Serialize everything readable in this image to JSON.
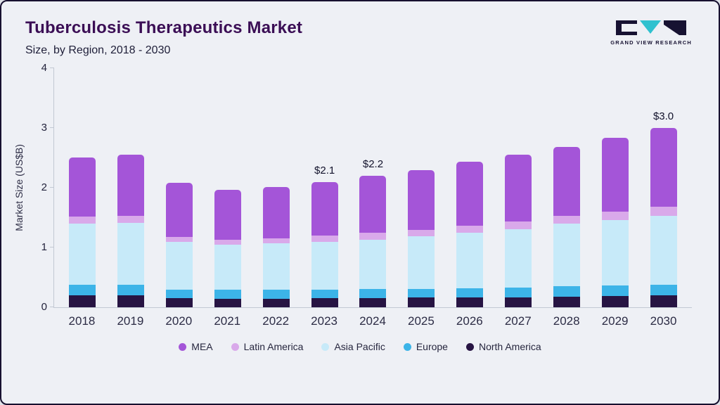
{
  "header": {
    "title": "Tuberculosis Therapeutics Market",
    "subtitle": "Size, by Region, 2018 - 2030",
    "logo_text": "GRAND VIEW RESEARCH"
  },
  "colors": {
    "title": "#3b0e55",
    "logo_dark": "#171232",
    "logo_teal": "#2fc1cf",
    "axis_line": "#c2c8d3",
    "background": "#eef0f5"
  },
  "chart_data": {
    "type": "bar",
    "stacked": true,
    "title": "Tuberculosis Therapeutics Market Size, by Region, 2018 - 2030",
    "xlabel": "",
    "ylabel": "Market Size (US$B)",
    "ylim": [
      0,
      4
    ],
    "yticks": [
      0,
      1,
      2,
      3,
      4
    ],
    "grid": false,
    "legend_position": "bottom",
    "categories": [
      "2018",
      "2019",
      "2020",
      "2021",
      "2022",
      "2023",
      "2024",
      "2025",
      "2026",
      "2027",
      "2028",
      "2029",
      "2030"
    ],
    "series": [
      {
        "name": "North America",
        "color": "#271443",
        "values": [
          0.2,
          0.2,
          0.15,
          0.14,
          0.14,
          0.15,
          0.15,
          0.16,
          0.16,
          0.17,
          0.18,
          0.19,
          0.2
        ]
      },
      {
        "name": "Europe",
        "color": "#3cb4e8",
        "values": [
          0.18,
          0.18,
          0.15,
          0.15,
          0.15,
          0.15,
          0.16,
          0.15,
          0.16,
          0.16,
          0.17,
          0.17,
          0.18
        ]
      },
      {
        "name": "Asia Pacific",
        "color": "#c7eaf9",
        "values": [
          1.02,
          1.03,
          0.8,
          0.76,
          0.78,
          0.8,
          0.82,
          0.88,
          0.93,
          0.98,
          1.05,
          1.1,
          1.15
        ]
      },
      {
        "name": "Latin America",
        "color": "#d9a9ea",
        "values": [
          0.12,
          0.12,
          0.08,
          0.08,
          0.08,
          0.1,
          0.12,
          0.11,
          0.12,
          0.13,
          0.13,
          0.14,
          0.15
        ]
      },
      {
        "name": "MEA",
        "color": "#a455d8",
        "values": [
          0.99,
          1.02,
          0.9,
          0.84,
          0.86,
          0.9,
          0.95,
          1.0,
          1.06,
          1.11,
          1.15,
          1.23,
          1.32
        ]
      }
    ],
    "totals": [
      2.51,
      2.55,
      2.08,
      1.97,
      2.01,
      2.1,
      2.2,
      2.3,
      2.43,
      2.55,
      2.68,
      2.83,
      3.0
    ],
    "annotations": [
      {
        "category": "2023",
        "label": "$2.1"
      },
      {
        "category": "2024",
        "label": "$2.2"
      },
      {
        "category": "2030",
        "label": "$3.0"
      }
    ]
  },
  "legend": {
    "items": [
      {
        "label": "MEA",
        "color": "#a455d8"
      },
      {
        "label": "Latin America",
        "color": "#d9a9ea"
      },
      {
        "label": "Asia Pacific",
        "color": "#c7eaf9"
      },
      {
        "label": "Europe",
        "color": "#3cb4e8"
      },
      {
        "label": "North America",
        "color": "#271443"
      }
    ]
  }
}
